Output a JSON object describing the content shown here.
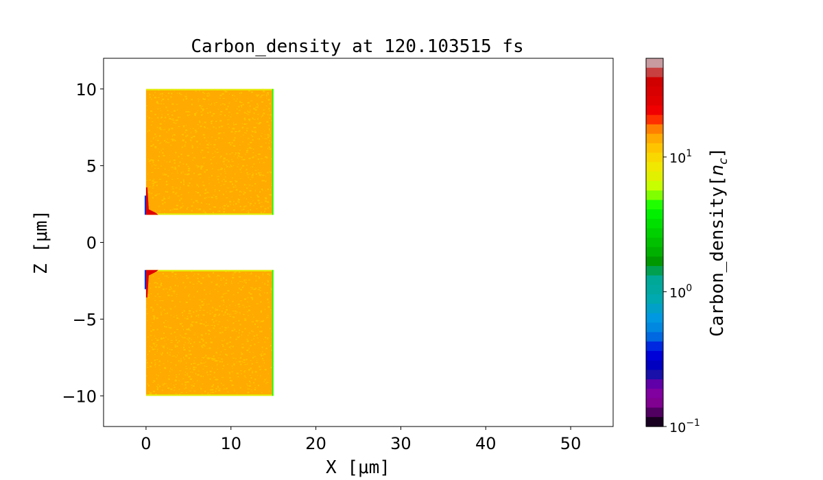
{
  "chart_data": {
    "type": "heatmap",
    "title": "Carbon_density at 120.103515 fs",
    "xlabel": "X  [μm]",
    "ylabel": "Z  [μm]",
    "xlim": [
      -5,
      55
    ],
    "ylim": [
      -12,
      12
    ],
    "xticks": [
      0,
      10,
      20,
      30,
      40,
      50
    ],
    "xtick_labels": [
      "0",
      "10",
      "20",
      "30",
      "40",
      "50"
    ],
    "yticks": [
      10,
      5,
      0,
      -5,
      -10
    ],
    "ytick_labels": [
      "10",
      "5",
      "0",
      "−5",
      "−10"
    ],
    "grid": false,
    "regions": [
      {
        "x": [
          0,
          15
        ],
        "z": [
          1.8,
          10
        ],
        "value": 15,
        "edge_hotspot": "lower-left"
      },
      {
        "x": [
          0,
          15
        ],
        "z": [
          -10,
          -1.8
        ],
        "value": 15,
        "edge_hotspot": "upper-left"
      }
    ],
    "colorbar": {
      "label_main": "Carbon_density[",
      "label_unit": "n",
      "label_sub": "c",
      "label_close": "]",
      "scale": "log",
      "range": [
        0.1,
        54
      ],
      "ticks": [
        {
          "value": 0.1,
          "base": "10",
          "exp": "−1"
        },
        {
          "value": 1,
          "base": "10",
          "exp": "0"
        },
        {
          "value": 10,
          "base": "10",
          "exp": "1"
        }
      ],
      "colors_top_to_bottom": [
        "#c89ba0",
        "#c84040",
        "#d00000",
        "#d80000",
        "#e00000",
        "#f00000",
        "#ff3000",
        "#ff8000",
        "#ffaa00",
        "#ffc400",
        "#f8d800",
        "#f0e800",
        "#e0f000",
        "#c8ff00",
        "#80ff00",
        "#20ff00",
        "#00f000",
        "#00e000",
        "#00d000",
        "#00c000",
        "#00b000",
        "#009800",
        "#00a050",
        "#00a898",
        "#00a8a0",
        "#00a8b0",
        "#00a0c8",
        "#0098e0",
        "#0088e0",
        "#0068e0",
        "#0028e0",
        "#0000d8",
        "#0000c0",
        "#1810a8",
        "#6000a8",
        "#8000a0",
        "#800090",
        "#500060",
        "#180020"
      ]
    }
  }
}
